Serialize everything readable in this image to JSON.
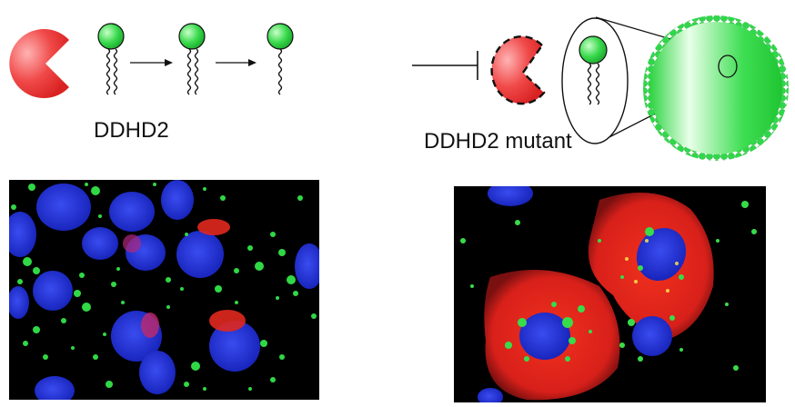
{
  "labels": {
    "wild_type": "DDHD2",
    "mutant": "DDHD2 mutant"
  },
  "colors": {
    "enzyme_red": "#ee3b3b",
    "lipid_head_green": "#2fd84a",
    "droplet_green": "#37d84a",
    "nucleus_blue": "#1e2fd6",
    "background": "#ffffff"
  },
  "icons": {
    "enzyme": "pacman-enzyme-icon",
    "lipid": "lipid-molecule-icon",
    "droplet": "lipid-droplet-icon",
    "inhibition": "inhibition-bar-icon"
  }
}
